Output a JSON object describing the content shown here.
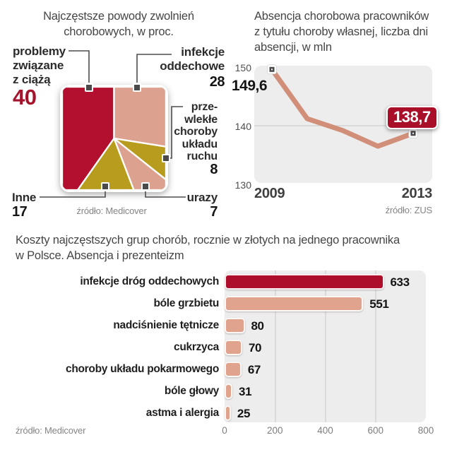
{
  "ui": {
    "pie": {
      "title": "Najczęstsze powody zwolnień\nchorobowych, w proc.",
      "source": "źródło: Medicover",
      "labels": {
        "ciaza": {
          "text": "problemy\nzwiązane\nz ciążą",
          "value": "40"
        },
        "infekcje": {
          "text": "infekcje\noddechowe",
          "value": "28"
        },
        "przewlekle": {
          "text": "prze-\nwlekłe\nchoroby\nukładu\nruchu",
          "value": "8"
        },
        "inne": {
          "text": "Inne",
          "value": "17"
        },
        "urazy": {
          "text": "urazy",
          "value": "7"
        }
      }
    },
    "line": {
      "title": "Absencja chorobowa pracowników\nz tytułu choroby własnej, liczba dni\nabsencji, w mln",
      "yticks": [
        "150",
        "140",
        "130"
      ],
      "start_label": "149,6",
      "end_label": "138,7",
      "x_first": "2009",
      "x_last": "2013",
      "source": "źródło: ZUS"
    },
    "bar": {
      "title": "Koszty najczęstszych grup chorób, rocznie w złotych na jednego pracownika\nw Polsce. Absencja i prezenteizm",
      "source": "źródło: Medicover"
    },
    "colors": {
      "red": "#b30f2e",
      "red_text": "#a4122c",
      "badge_red": "#a90f29",
      "salmon": "#dda28f",
      "olive": "#b89c1e",
      "line_salmon": "#d18e79",
      "bar_red": "#ac0e2b",
      "bar_salmon": "#dfa38e",
      "panel_bg": "#ededed"
    }
  },
  "chart_data": [
    {
      "type": "pie",
      "shape": "square-pie",
      "title": "Najczęstsze powody zwolnień chorobowych, w proc.",
      "source": "źródło: Medicover",
      "segments": [
        {
          "key": "ciaza",
          "label": "problemy związane z ciążą",
          "value": 40,
          "color": "#b30f2e"
        },
        {
          "key": "infekcje",
          "label": "infekcje oddechowe",
          "value": 28,
          "color": "#dda28f"
        },
        {
          "key": "przewlekle",
          "label": "przewlekłe choroby układu ruchu",
          "value": 8,
          "color": "#b89c1e"
        },
        {
          "key": "urazy",
          "label": "urazy",
          "value": 7,
          "color": "#dca28f"
        },
        {
          "key": "inne",
          "label": "Inne",
          "value": 17,
          "color": "#b89c1e"
        }
      ]
    },
    {
      "type": "line",
      "title": "Absencja chorobowa pracowników z tytułu choroby własnej, liczba dni absencji, w mln",
      "source": "źródło: ZUS",
      "x": [
        2009,
        2010,
        2011,
        2012,
        2013
      ],
      "values": [
        149.6,
        141.2,
        139.2,
        136.5,
        138.7
      ],
      "ylim": [
        130,
        150
      ],
      "yticks": [
        150,
        140,
        130
      ],
      "gridline_at": 140,
      "xlabels": [
        "2009",
        "2013"
      ],
      "point_labels": {
        "first": "149,6",
        "last": "138,7"
      }
    },
    {
      "type": "bar",
      "orientation": "horizontal",
      "title": "Koszty najczęstszych grup chorób, rocznie w złotych na jednego pracownika w Polsce. Absencja i prezenteizm",
      "source": "źródło: Medicover",
      "categories": [
        "infekcje dróg oddechowych",
        "bóle grzbietu",
        "nadciśnienie tętnicze",
        "cukrzyca",
        "choroby układu pokarmowego",
        "bóle głowy",
        "astma i alergia"
      ],
      "values": [
        633,
        551,
        80,
        70,
        67,
        31,
        25
      ],
      "xticks": [
        0,
        200,
        400,
        600,
        800
      ],
      "xlim": [
        0,
        800
      ]
    }
  ]
}
